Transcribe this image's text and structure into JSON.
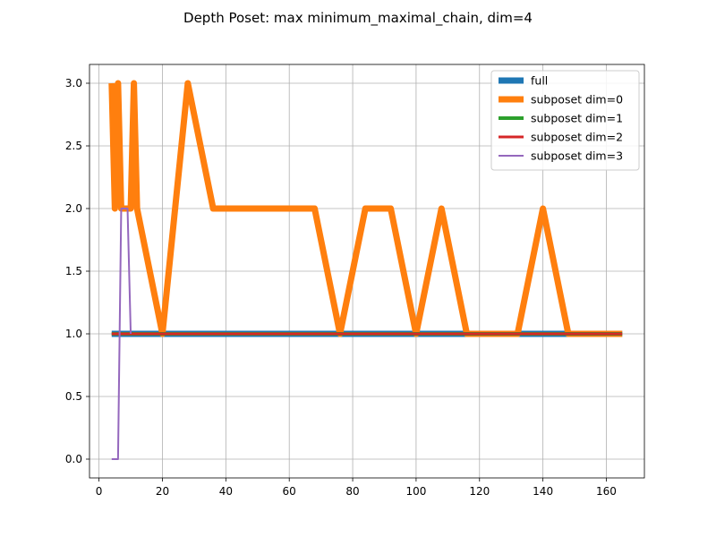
{
  "chart_data": {
    "type": "line",
    "title": "Depth Poset: max minimum_maximal_chain, dim=4",
    "xlabel": "",
    "ylabel": "",
    "xlim": [
      -3,
      172
    ],
    "ylim": [
      -0.15,
      3.15
    ],
    "xticks": [
      0,
      20,
      40,
      60,
      80,
      100,
      120,
      140,
      160
    ],
    "yticks": [
      0.0,
      0.5,
      1.0,
      1.5,
      2.0,
      2.5,
      3.0
    ],
    "xtick_labels": [
      "0",
      "20",
      "40",
      "60",
      "80",
      "100",
      "120",
      "140",
      "160"
    ],
    "ytick_labels": [
      "0.0",
      "0.5",
      "1.0",
      "1.5",
      "2.0",
      "2.5",
      "3.0"
    ],
    "grid": true,
    "legend_position": "top-right",
    "series": [
      {
        "name": "full",
        "color": "#1f77b4",
        "x": [
          4,
          165
        ],
        "y": [
          1,
          1
        ]
      },
      {
        "name": "subposet dim=0",
        "color": "#ff7f0e",
        "x": [
          4,
          5,
          6,
          7,
          8,
          10,
          11,
          12,
          20,
          28,
          36,
          44,
          52,
          60,
          68,
          76,
          84,
          92,
          100,
          108,
          116,
          124,
          132,
          140,
          148,
          156,
          165
        ],
        "y": [
          3,
          2,
          3,
          2,
          2,
          2,
          3,
          2,
          1,
          3,
          2,
          2,
          2,
          2,
          2,
          1,
          2,
          2,
          1,
          2,
          1,
          1,
          1,
          2,
          1,
          1,
          1
        ]
      },
      {
        "name": "subposet dim=1",
        "color": "#2ca02c",
        "x": [
          4,
          165
        ],
        "y": [
          1,
          1
        ]
      },
      {
        "name": "subposet dim=2",
        "color": "#d62728",
        "x": [
          4,
          165
        ],
        "y": [
          1,
          1
        ]
      },
      {
        "name": "subposet dim=3",
        "color": "#9467bd",
        "x": [
          4,
          6,
          7,
          8,
          9,
          10
        ],
        "y": [
          0,
          0,
          2,
          2,
          2,
          1
        ]
      }
    ]
  }
}
